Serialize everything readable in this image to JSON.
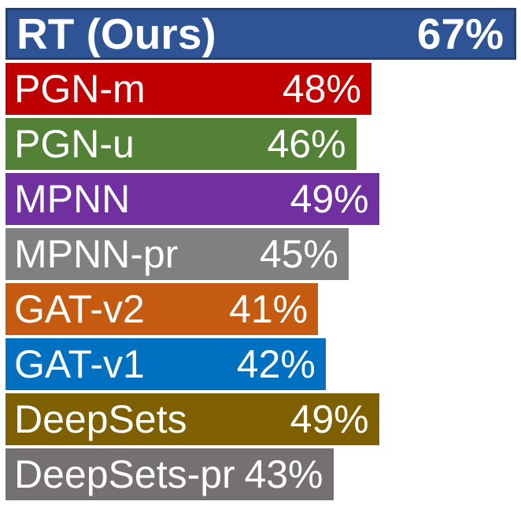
{
  "page": {
    "background": "#FFFFFF",
    "text_color": "#FFFFFF"
  },
  "chart_data": {
    "type": "bar",
    "orientation": "horizontal",
    "title": "",
    "xlabel": "",
    "ylabel": "",
    "xlim": [
      0,
      67
    ],
    "grid": false,
    "legend": false,
    "value_labels_position": "inside-end",
    "category_labels_position": "inside-start",
    "categories": [
      "RT (Ours)",
      "PGN-m",
      "PGN-u",
      "MPNN",
      "MPNN-pr",
      "GAT-v2",
      "GAT-v1",
      "DeepSets",
      "DeepSets-pr"
    ],
    "values": [
      67,
      48,
      46,
      49,
      45,
      41,
      42,
      49,
      43
    ],
    "bars": [
      {
        "label": "RT (Ours)",
        "value": 67,
        "value_label": "67%",
        "color": "#2F5496",
        "border_color": "#24416F",
        "highlight": true
      },
      {
        "label": "PGN-m",
        "value": 48,
        "value_label": "48%",
        "color": "#C00000",
        "highlight": false
      },
      {
        "label": "PGN-u",
        "value": 46,
        "value_label": "46%",
        "color": "#538135",
        "highlight": false
      },
      {
        "label": "MPNN",
        "value": 49,
        "value_label": "49%",
        "color": "#7030A0",
        "highlight": false
      },
      {
        "label": "MPNN-pr",
        "value": 45,
        "value_label": "45%",
        "color": "#808080",
        "highlight": false
      },
      {
        "label": "GAT-v2",
        "value": 41,
        "value_label": "41%",
        "color": "#C55A11",
        "highlight": false
      },
      {
        "label": "GAT-v1",
        "value": 42,
        "value_label": "42%",
        "color": "#0070C0",
        "highlight": false
      },
      {
        "label": "DeepSets",
        "value": 49,
        "value_label": "49%",
        "color": "#7F6000",
        "highlight": false
      },
      {
        "label": "DeepSets-pr",
        "value": 43,
        "value_label": "43%",
        "color": "#767171",
        "highlight": false
      }
    ]
  }
}
